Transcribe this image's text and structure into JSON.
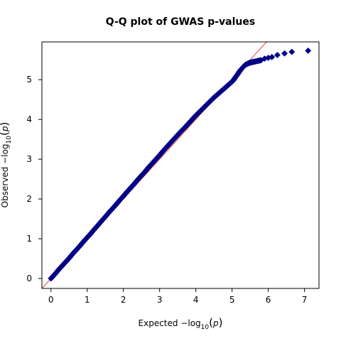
{
  "chart_data": {
    "type": "scatter",
    "title": "Q-Q plot of GWAS p-values",
    "xlabel": {
      "prefix": "Expected  −log",
      "sub": "10",
      "open": "(",
      "var": "p",
      "close": ")"
    },
    "ylabel": {
      "prefix": "Observed  −log",
      "sub": "10",
      "open": "(",
      "var": "p",
      "close": ")"
    },
    "xlim": [
      -0.25,
      7.4
    ],
    "ylim": [
      -0.25,
      5.95
    ],
    "xticks": [
      0,
      1,
      2,
      3,
      4,
      5,
      6,
      7
    ],
    "yticks": [
      0,
      1,
      2,
      3,
      4,
      5
    ],
    "grid": false,
    "legend": "none",
    "reference_line": {
      "slope": 1,
      "intercept": 0,
      "color": "#e8413b"
    },
    "marker": {
      "shape": "diamond",
      "fill": "#00008b",
      "edge": "#000080"
    },
    "series": [
      {
        "points": [
          [
            0.0,
            0.0
          ],
          [
            0.05,
            0.05
          ],
          [
            0.12,
            0.12
          ],
          [
            0.2,
            0.21
          ],
          [
            0.3,
            0.31
          ],
          [
            0.4,
            0.41
          ],
          [
            0.5,
            0.51
          ],
          [
            0.6,
            0.62
          ],
          [
            0.7,
            0.72
          ],
          [
            0.8,
            0.82
          ],
          [
            0.9,
            0.93
          ],
          [
            1.0,
            1.03
          ],
          [
            1.1,
            1.13
          ],
          [
            1.2,
            1.24
          ],
          [
            1.3,
            1.34
          ],
          [
            1.4,
            1.45
          ],
          [
            1.5,
            1.55
          ],
          [
            1.6,
            1.66
          ],
          [
            1.7,
            1.76
          ],
          [
            1.8,
            1.86
          ],
          [
            1.9,
            1.97
          ],
          [
            2.0,
            2.07
          ],
          [
            2.1,
            2.18
          ],
          [
            2.2,
            2.28
          ],
          [
            2.3,
            2.38
          ],
          [
            2.4,
            2.49
          ],
          [
            2.5,
            2.59
          ],
          [
            2.6,
            2.69
          ],
          [
            2.7,
            2.8
          ],
          [
            2.8,
            2.9
          ],
          [
            2.9,
            3.0
          ],
          [
            3.0,
            3.1
          ],
          [
            3.1,
            3.21
          ],
          [
            3.2,
            3.31
          ],
          [
            3.3,
            3.41
          ],
          [
            3.4,
            3.51
          ],
          [
            3.5,
            3.61
          ],
          [
            3.6,
            3.71
          ],
          [
            3.7,
            3.8
          ],
          [
            3.8,
            3.9
          ],
          [
            3.9,
            4.0
          ],
          [
            4.0,
            4.1
          ],
          [
            4.1,
            4.19
          ],
          [
            4.2,
            4.28
          ],
          [
            4.3,
            4.37
          ],
          [
            4.4,
            4.46
          ],
          [
            4.5,
            4.55
          ],
          [
            4.6,
            4.63
          ],
          [
            4.7,
            4.71
          ],
          [
            4.8,
            4.79
          ],
          [
            4.9,
            4.87
          ],
          [
            5.0,
            4.95
          ],
          [
            5.05,
            5.0
          ],
          [
            5.1,
            5.07
          ],
          [
            5.15,
            5.13
          ],
          [
            5.2,
            5.2
          ],
          [
            5.25,
            5.26
          ],
          [
            5.3,
            5.31
          ],
          [
            5.35,
            5.36
          ],
          [
            5.4,
            5.39
          ],
          [
            5.45,
            5.41
          ],
          [
            5.5,
            5.43
          ],
          [
            5.55,
            5.44
          ],
          [
            5.6,
            5.45
          ],
          [
            5.65,
            5.46
          ],
          [
            5.7,
            5.47
          ],
          [
            5.75,
            5.48
          ],
          [
            5.8,
            5.49
          ],
          [
            5.9,
            5.53
          ],
          [
            6.0,
            5.55
          ],
          [
            6.1,
            5.57
          ],
          [
            6.25,
            5.62
          ],
          [
            6.45,
            5.66
          ],
          [
            6.65,
            5.7
          ],
          [
            7.1,
            5.73
          ]
        ]
      }
    ]
  }
}
